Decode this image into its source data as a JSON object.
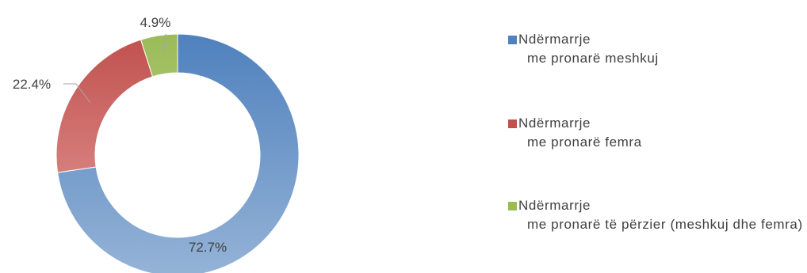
{
  "chart_data": {
    "type": "doughnut",
    "title": "",
    "series": [
      {
        "name": "",
        "slices": [
          {
            "label_line1": "Ndërmarrje",
            "label_line2": "me pronarë meshkuj",
            "value": 72.7,
            "display": "72.7%",
            "color_top": "#4f81bd",
            "color_bottom": "#95b3d7"
          },
          {
            "label_line1": "Ndërmarrje",
            "label_line2": "me pronarë femra",
            "value": 22.4,
            "display": "22.4%",
            "color_top": "#c0504d",
            "color_bottom": "#e6a09e"
          },
          {
            "label_line1": "Ndërmarrje",
            "label_line2": "me pronarë të përzier (meshkuj dhe femra)",
            "value": 4.9,
            "display": "4.9%",
            "color_top": "#9bbb59",
            "color_bottom": "#c6dc9a"
          }
        ]
      }
    ],
    "legend_position": "right",
    "show_data_labels": true
  }
}
